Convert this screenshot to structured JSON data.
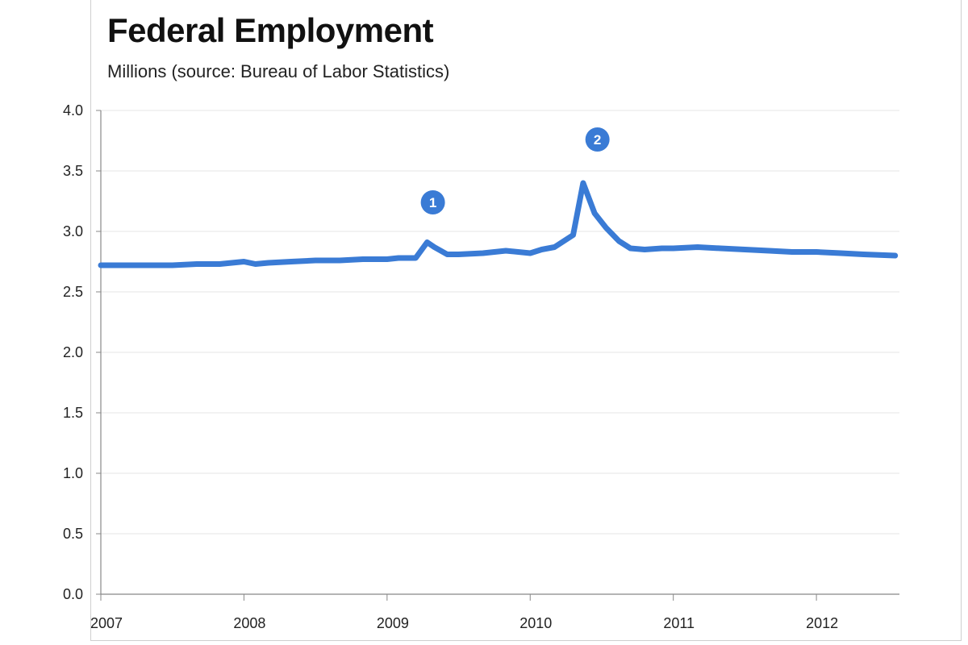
{
  "chart_data": {
    "type": "line",
    "title": "Federal Employment",
    "subtitle": "Millions (source: Bureau of Labor Statistics)",
    "xlabel": "",
    "ylabel": "",
    "xlim": [
      2007.0,
      2012.58
    ],
    "ylim": [
      0,
      4.0
    ],
    "yticks": [
      "0.0",
      "0.5",
      "1.0",
      "1.5",
      "2.0",
      "2.5",
      "3.0",
      "3.5",
      "4.0"
    ],
    "xticks": [
      "2007",
      "2008",
      "2009",
      "2010",
      "2011",
      "2012"
    ],
    "grid": true,
    "legend": "none",
    "series_color": "#3a7bd5",
    "series": [
      {
        "x": [
          2007.0,
          2007.17,
          2007.33,
          2007.5,
          2007.67,
          2007.83,
          2008.0,
          2008.08,
          2008.17,
          2008.33,
          2008.5,
          2008.67,
          2008.83,
          2009.0,
          2009.08,
          2009.2,
          2009.28,
          2009.33,
          2009.42,
          2009.5,
          2009.67,
          2009.83,
          2010.0,
          2010.08,
          2010.17,
          2010.3,
          2010.37,
          2010.45,
          2010.53,
          2010.62,
          2010.7,
          2010.8,
          2010.92,
          2011.0,
          2011.17,
          2011.33,
          2011.5,
          2011.67,
          2011.83,
          2012.0,
          2012.17,
          2012.33,
          2012.55
        ],
        "values": [
          2.72,
          2.72,
          2.72,
          2.72,
          2.73,
          2.73,
          2.75,
          2.73,
          2.74,
          2.75,
          2.76,
          2.76,
          2.77,
          2.77,
          2.78,
          2.78,
          2.91,
          2.87,
          2.81,
          2.81,
          2.82,
          2.84,
          2.82,
          2.85,
          2.87,
          2.97,
          3.4,
          3.15,
          3.03,
          2.92,
          2.86,
          2.85,
          2.86,
          2.86,
          2.87,
          2.86,
          2.85,
          2.84,
          2.83,
          2.83,
          2.82,
          2.81,
          2.8
        ]
      }
    ],
    "annotations": [
      {
        "label": "1",
        "x": 2009.32,
        "y": 3.24
      },
      {
        "label": "2",
        "x": 2010.47,
        "y": 3.76
      }
    ]
  }
}
